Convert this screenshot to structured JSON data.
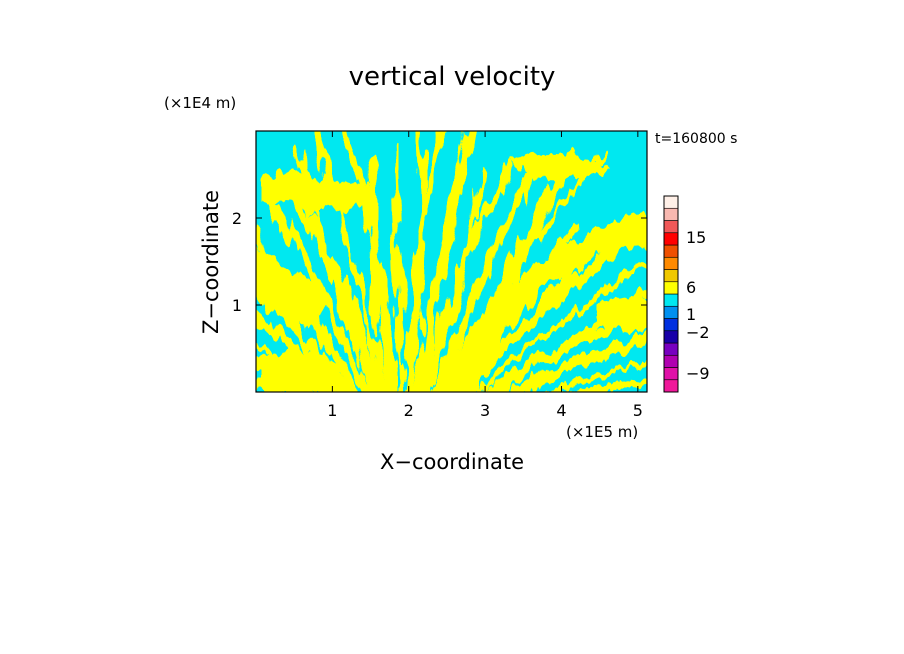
{
  "chart_data": {
    "type": "heatmap",
    "title": "vertical velocity",
    "xlabel": "X−coordinate",
    "ylabel": "Z−coordinate",
    "x_unit": "(×1E5 m)",
    "y_unit": "(×1E4 m)",
    "time_label": "t=160800 s",
    "xlim": [
      0,
      5.12
    ],
    "ylim": [
      0,
      3.0
    ],
    "x_ticks": [
      1,
      2,
      3,
      4,
      5
    ],
    "y_ticks": [
      1,
      2
    ],
    "field_colors": {
      "background": "#00e8f0",
      "positive": "#ffff00"
    },
    "colorbar": {
      "levels": [
        {
          "color": "#f0189a"
        },
        {
          "color": "#e010a8"
        },
        {
          "color": "#b000b0"
        },
        {
          "color": "#7800c0"
        },
        {
          "color": "#1800a8"
        },
        {
          "color": "#0030e0"
        },
        {
          "color": "#0090f0"
        },
        {
          "color": "#00e8f0"
        },
        {
          "color": "#ffff00"
        },
        {
          "color": "#f0c800"
        },
        {
          "color": "#ff8a00"
        },
        {
          "color": "#f05000"
        },
        {
          "color": "#ff0000"
        },
        {
          "color": "#f05858"
        },
        {
          "color": "#f8b8b0"
        },
        {
          "color": "#fff0e8"
        }
      ],
      "labels": [
        "15",
        "6",
        "1",
        "−2",
        "−9"
      ]
    }
  }
}
